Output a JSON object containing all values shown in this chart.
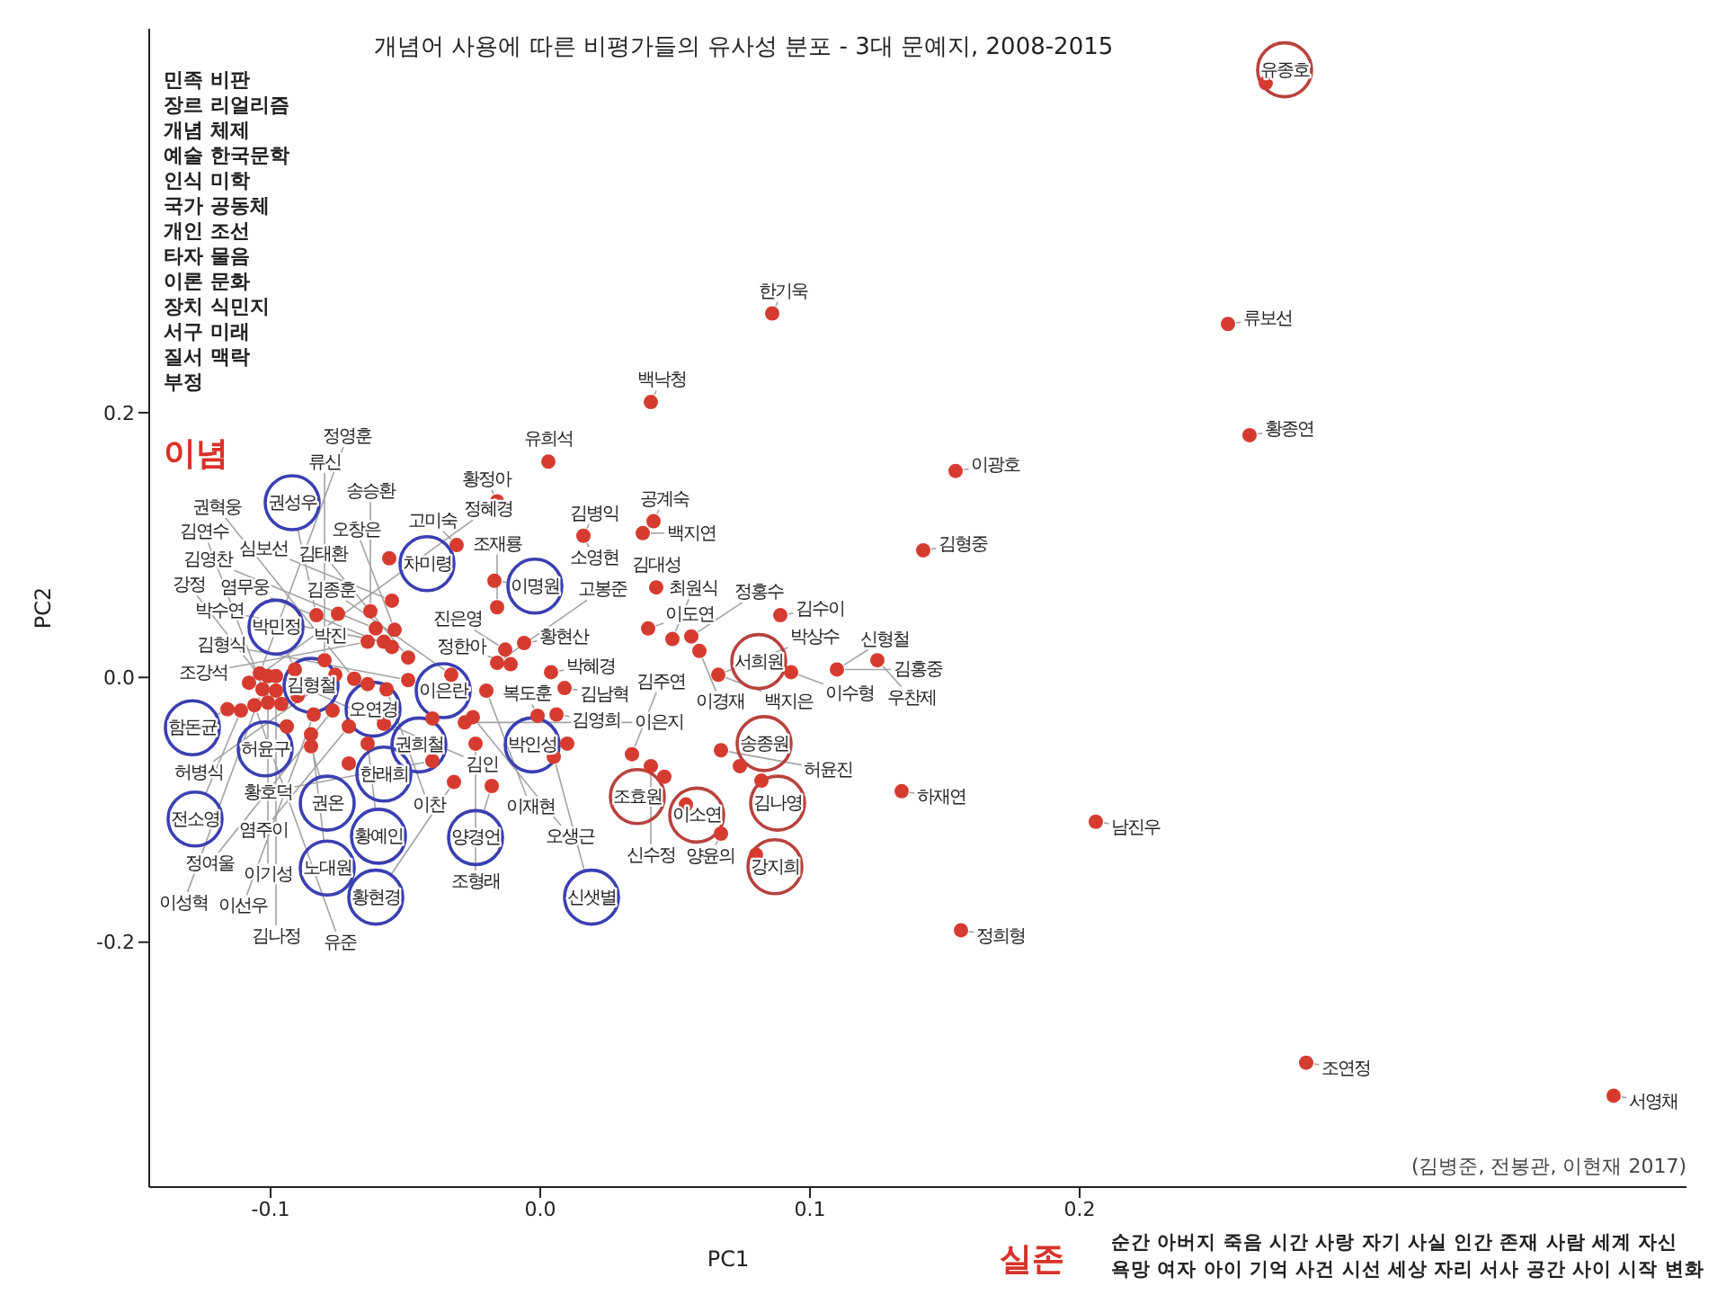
{
  "chart_data": {
    "type": "scatter",
    "title": "개념어 사용에 따른 비평가들의 유사성 분포 - 3대 문예지, 2008-2015",
    "xlabel": "PC1",
    "ylabel": "PC2",
    "marker": "circle",
    "xlim": [
      -0.145,
      0.425
    ],
    "ylim": [
      -0.385,
      0.49
    ],
    "xticks": [
      -0.1,
      {
        "value": 0,
        "label": "0.0"
      },
      0.1,
      0.2
    ],
    "yticks": [
      -0.2,
      {
        "value": 0,
        "label": "0.0"
      },
      0.2
    ],
    "series": [
      {
        "color": "#d63b2f",
        "x": [
          0.086,
          0.041,
          0.003,
          -0.016,
          0.154,
          0.042,
          0.038,
          0.016,
          0.142,
          -0.017,
          0.269,
          0.255,
          0.263,
          0.089,
          0.093,
          0.11,
          0.125,
          0.134,
          0.074,
          0.082,
          0.067,
          0.08,
          0.206,
          0.156,
          0.284,
          0.398,
          0.034,
          0.041,
          0.046,
          0.067,
          0.054,
          0.043,
          0.04,
          0.049,
          0.056,
          0.059,
          0.066,
          -0.006,
          -0.013,
          -0.016,
          -0.011,
          0.004,
          0.009,
          -0.02,
          -0.001,
          0.006,
          0.01,
          0.005,
          -0.018,
          -0.024,
          -0.016,
          -0.031,
          -0.056,
          -0.055,
          -0.063,
          -0.075,
          -0.083,
          -0.061,
          -0.054,
          -0.064,
          -0.058,
          -0.055,
          -0.049,
          -0.08,
          -0.091,
          -0.104,
          -0.101,
          -0.098,
          -0.108,
          -0.076,
          -0.069,
          -0.064,
          -0.057,
          -0.049,
          -0.033,
          -0.103,
          -0.098,
          -0.116,
          -0.111,
          -0.106,
          -0.101,
          -0.096,
          -0.09,
          -0.084,
          -0.077,
          -0.071,
          -0.058,
          -0.094,
          -0.04,
          -0.028,
          -0.025,
          -0.085,
          -0.085,
          -0.064,
          -0.071,
          -0.04,
          -0.032
        ],
        "values": [
          0.275,
          0.208,
          0.163,
          0.133,
          0.156,
          0.118,
          0.109,
          0.107,
          0.096,
          0.073,
          0.449,
          0.267,
          0.183,
          0.047,
          0.004,
          0.006,
          0.013,
          -0.086,
          -0.067,
          -0.078,
          -0.118,
          -0.134,
          -0.109,
          -0.191,
          -0.291,
          -0.316,
          -0.058,
          -0.067,
          -0.075,
          -0.055,
          -0.096,
          0.068,
          0.037,
          0.029,
          0.031,
          0.02,
          0.002,
          0.026,
          0.021,
          0.011,
          0.01,
          0.004,
          -0.008,
          -0.01,
          -0.029,
          -0.028,
          -0.05,
          -0.06,
          -0.082,
          -0.05,
          0.053,
          0.1,
          0.09,
          0.058,
          0.05,
          0.048,
          0.047,
          0.037,
          0.036,
          0.027,
          0.027,
          0.023,
          0.015,
          0.013,
          0.006,
          0.003,
          0.001,
          0.001,
          -0.004,
          0.002,
          -0.001,
          -0.005,
          -0.009,
          -0.002,
          0.002,
          -0.009,
          -0.01,
          -0.024,
          -0.025,
          -0.021,
          -0.019,
          -0.02,
          -0.014,
          -0.028,
          -0.025,
          -0.037,
          -0.035,
          -0.037,
          -0.031,
          -0.034,
          -0.03,
          -0.043,
          -0.052,
          -0.05,
          -0.065,
          -0.063,
          -0.079
        ]
      },
      {
        "type": "bubble",
        "color": "#3a3fb2",
        "x": [
          -0.092,
          -0.042,
          -0.002,
          -0.098,
          -0.085,
          -0.036,
          -0.062,
          -0.129,
          -0.102,
          -0.045,
          -0.003,
          -0.058,
          -0.128,
          -0.079,
          -0.06,
          -0.024,
          -0.079,
          -0.061,
          0.019
        ],
        "values": [
          0.132,
          0.086,
          0.069,
          0.038,
          -0.006,
          -0.01,
          -0.024,
          -0.038,
          -0.054,
          -0.051,
          -0.051,
          -0.073,
          -0.107,
          -0.095,
          -0.12,
          -0.121,
          -0.144,
          -0.166,
          -0.166
        ],
        "sizes": [
          1,
          1,
          1,
          1,
          1,
          1,
          1,
          1,
          1,
          1,
          1,
          1,
          1,
          1,
          1,
          1,
          1,
          1,
          1
        ]
      },
      {
        "type": "bubble",
        "color": "#b8423d",
        "x": [
          0.276,
          0.081,
          0.083,
          0.036,
          0.058,
          0.088,
          0.087
        ],
        "values": [
          0.459,
          0.012,
          -0.05,
          -0.09,
          -0.104,
          -0.095,
          -0.143
        ],
        "sizes": [
          1,
          1,
          1,
          1,
          1,
          1,
          1
        ]
      }
    ],
    "annotations": [
      "민족 비판\n장르 리얼리즘\n개념 체제\n예술 한국문학\n인식 미학\n국가 공동체\n개인 조선\n타자 물음\n이론 문화\n장치 식민지\n서구 미래\n질서 맥락\n부정",
      "이념",
      "실존",
      "순간 아버지 죽음 시간 사랑 자기 사실 인간 존재 사람 세계 자신\n욕망 여자 아이 기억 사건 시선 세상 자리 서사 공간 사이 시작 변화",
      "(김병준, 전봉관, 이현재 2017)",
      {
        "text": "권성우",
        "x": -0.083,
        "y": 0.047
      },
      {
        "text": "차미령",
        "x": -0.056,
        "y": 0.09
      },
      {
        "text": "이명원",
        "x": -0.017,
        "y": 0.073
      },
      {
        "text": "박민정",
        "x": -0.091,
        "y": 0.006
      },
      {
        "text": "김형철",
        "x": -0.09,
        "y": -0.014
      },
      {
        "text": "이은란",
        "x": -0.04,
        "y": -0.031
      },
      {
        "text": "오연경",
        "x": -0.064,
        "y": -0.005
      },
      {
        "text": "함돈균",
        "x": -0.116,
        "y": -0.024
      },
      {
        "text": "허윤구",
        "x": -0.094,
        "y": -0.037
      },
      {
        "text": "권희철",
        "x": -0.058,
        "y": -0.035
      },
      {
        "text": "박인성",
        "x": 0.01,
        "y": -0.05
      },
      {
        "text": "한래희",
        "x": -0.071,
        "y": -0.065
      },
      {
        "text": "전소영",
        "x": -0.111,
        "y": -0.025
      },
      {
        "text": "권온",
        "x": -0.085,
        "y": -0.052
      },
      {
        "text": "황예인",
        "x": -0.064,
        "y": -0.05
      },
      {
        "text": "양경언",
        "x": -0.018,
        "y": -0.082
      },
      {
        "text": "노대원",
        "x": -0.085,
        "y": -0.043
      },
      {
        "text": "황현경",
        "x": -0.032,
        "y": -0.079
      },
      {
        "text": "신샛별",
        "x": 0.005,
        "y": -0.06
      },
      {
        "text": "유종호",
        "x": 0.269,
        "y": 0.449
      },
      {
        "text": "서희원",
        "x": 0.093,
        "y": 0.004
      },
      {
        "text": "송종원",
        "x": 0.074,
        "y": -0.067
      },
      {
        "text": "조효원",
        "x": 0.046,
        "y": -0.075
      },
      {
        "text": "이소연",
        "x": 0.054,
        "y": -0.096
      },
      {
        "text": "김나영",
        "x": 0.082,
        "y": -0.078
      },
      {
        "text": "강지희",
        "x": 0.08,
        "y": -0.134
      },
      {
        "text": "한기욱",
        "x": 0.086,
        "y": 0.275
      },
      {
        "text": "백낙청",
        "x": 0.041,
        "y": 0.208
      },
      {
        "text": "유희석",
        "x": 0.003,
        "y": 0.163
      },
      {
        "text": "황정아",
        "x": -0.016,
        "y": 0.133
      },
      {
        "text": "이광호",
        "x": 0.154,
        "y": 0.156
      },
      {
        "text": "김병익",
        "x": 0.016,
        "y": 0.107
      },
      {
        "text": "소영현",
        "x": 0.016,
        "y": 0.107
      },
      {
        "text": "공계숙",
        "x": 0.042,
        "y": 0.118
      },
      {
        "text": "백지연",
        "x": 0.038,
        "y": 0.109
      },
      {
        "text": "김형중",
        "x": 0.142,
        "y": 0.096
      },
      {
        "text": "정홍수",
        "x": 0.056,
        "y": 0.031
      },
      {
        "text": "김대성",
        "x": 0.043,
        "y": 0.068
      },
      {
        "text": "조재룡",
        "x": -0.016,
        "y": 0.053
      },
      {
        "text": "최원식",
        "x": 0.049,
        "y": 0.029
      },
      {
        "text": "김수이",
        "x": 0.089,
        "y": 0.047
      },
      {
        "text": "이도연",
        "x": 0.04,
        "y": 0.037
      },
      {
        "text": "황현산",
        "x": -0.006,
        "y": 0.026
      },
      {
        "text": "이경재",
        "x": 0.059,
        "y": 0.02
      },
      {
        "text": "박혜경",
        "x": 0.004,
        "y": 0.004
      },
      {
        "text": "신형철",
        "x": 0.11,
        "y": 0.006
      },
      {
        "text": "김홍중",
        "x": 0.11,
        "y": 0.006
      },
      {
        "text": "우찬제",
        "x": 0.125,
        "y": 0.013
      },
      {
        "text": "백지은",
        "x": 0.066,
        "y": 0.002
      },
      {
        "text": "박상수",
        "x": 0.066,
        "y": 0.002
      },
      {
        "text": "김남혁",
        "x": 0.009,
        "y": -0.008
      },
      {
        "text": "이수형",
        "x": 0.093,
        "y": 0.004
      },
      {
        "text": "정한아",
        "x": -0.011,
        "y": 0.01
      },
      {
        "text": "복도훈",
        "x": -0.001,
        "y": -0.029
      },
      {
        "text": "김영희",
        "x": 0.006,
        "y": -0.028
      },
      {
        "text": "허윤진",
        "x": 0.067,
        "y": -0.055
      },
      {
        "text": "김주연",
        "x": 0.034,
        "y": -0.058
      },
      {
        "text": "조형래",
        "x": -0.024,
        "y": -0.05
      },
      {
        "text": "하재연",
        "x": 0.134,
        "y": -0.086
      },
      {
        "text": "황호덕",
        "x": -0.04,
        "y": -0.063
      },
      {
        "text": "신수정",
        "x": 0.041,
        "y": -0.067
      },
      {
        "text": "양윤의",
        "x": 0.067,
        "y": -0.118
      },
      {
        "text": "남진우",
        "x": 0.206,
        "y": -0.109
      },
      {
        "text": "정희형",
        "x": 0.156,
        "y": -0.191
      },
      {
        "text": "조연정",
        "x": 0.284,
        "y": -0.291
      },
      {
        "text": "서영채",
        "x": 0.398,
        "y": -0.316
      },
      {
        "text": "류보선",
        "x": 0.255,
        "y": 0.267
      },
      {
        "text": "황종연",
        "x": 0.263,
        "y": 0.183
      },
      {
        "text": "이은지",
        "x": -0.028,
        "y": -0.034
      },
      {
        "text": "오생근",
        "x": -0.025,
        "y": -0.03
      },
      {
        "text": "이재현",
        "x": -0.02,
        "y": -0.01
      },
      {
        "text": "이찬",
        "x": -0.057,
        "y": -0.009
      },
      {
        "text": "염주이",
        "x": -0.071,
        "y": -0.037
      },
      {
        "text": "정여울",
        "x": -0.077,
        "y": -0.025
      },
      {
        "text": "이선우",
        "x": -0.084,
        "y": -0.028
      },
      {
        "text": "김연수",
        "x": -0.101,
        "y": -0.019
      },
      {
        "text": "유준",
        "x": -0.106,
        "y": -0.021
      },
      {
        "text": "강정",
        "x": -0.096,
        "y": -0.02
      },
      {
        "text": "김나정",
        "x": -0.098,
        "y": -0.01
      },
      {
        "text": "이성혁",
        "x": -0.103,
        "y": -0.009
      },
      {
        "text": "정혜경",
        "x": -0.108,
        "y": -0.004
      },
      {
        "text": "정영훈",
        "x": -0.104,
        "y": 0.003
      },
      {
        "text": "이기성",
        "x": -0.101,
        "y": 0.001
      },
      {
        "text": "김인",
        "x": -0.098,
        "y": 0.001
      },
      {
        "text": "류신",
        "x": -0.08,
        "y": 0.013
      },
      {
        "text": "박진",
        "x": -0.075,
        "y": 0.048
      },
      {
        "text": "허병식",
        "x": -0.076,
        "y": 0.002
      },
      {
        "text": "송승환",
        "x": -0.063,
        "y": 0.05
      },
      {
        "text": "조강석",
        "x": -0.064,
        "y": 0.027
      },
      {
        "text": "권혁웅",
        "x": -0.069,
        "y": -0.001
      },
      {
        "text": "김영찬",
        "x": -0.061,
        "y": 0.037
      },
      {
        "text": "심보선",
        "x": -0.055,
        "y": 0.058
      },
      {
        "text": "오창은",
        "x": -0.054,
        "y": 0.036
      },
      {
        "text": "진은영",
        "x": -0.013,
        "y": 0.021
      },
      {
        "text": "박수연",
        "x": -0.058,
        "y": 0.027
      },
      {
        "text": "염무웅",
        "x": -0.055,
        "y": 0.023
      },
      {
        "text": "김태환",
        "x": -0.049,
        "y": 0.015
      },
      {
        "text": "고미숙",
        "x": -0.031,
        "y": 0.1
      },
      {
        "text": "김종훈",
        "x": -0.033,
        "y": 0.002
      },
      {
        "text": "고봉준",
        "x": -0.016,
        "y": 0.011
      },
      {
        "text": "김형식",
        "x": -0.049,
        "y": -0.002
      }
    ]
  }
}
